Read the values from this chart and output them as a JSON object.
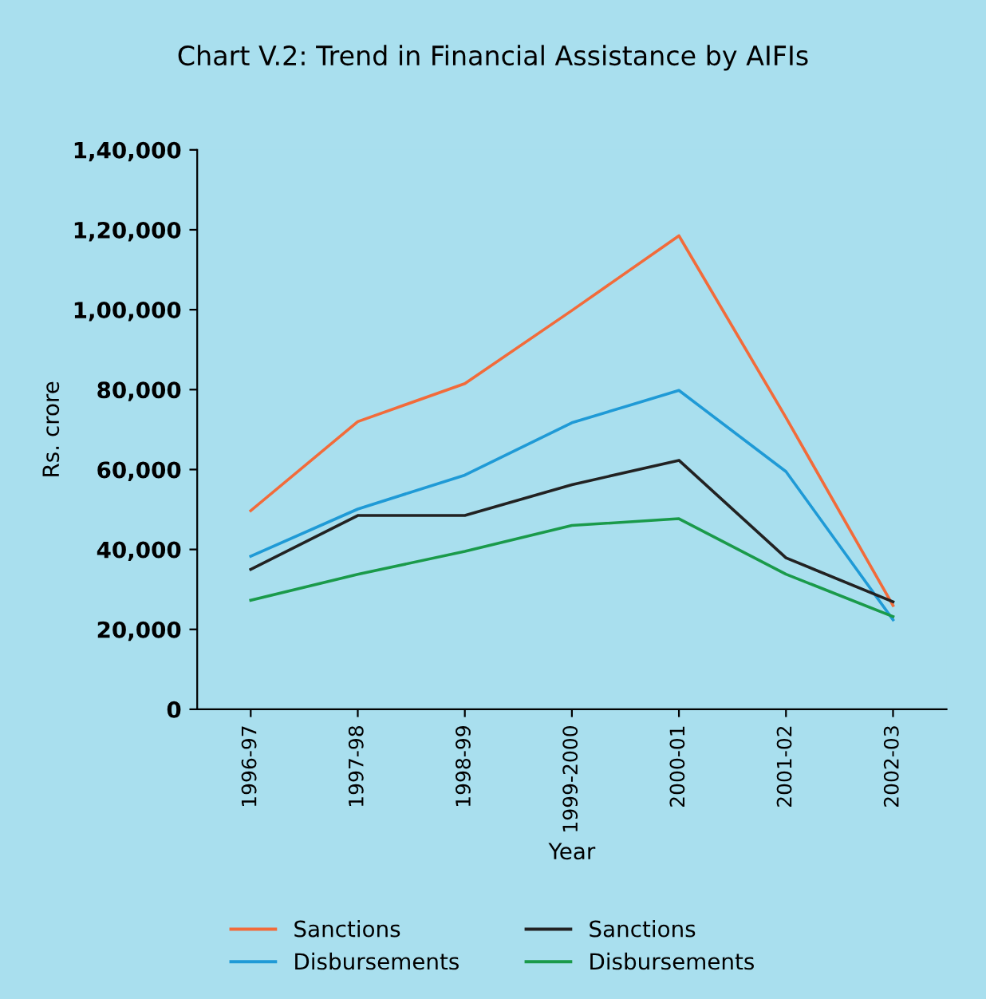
{
  "chart_data": {
    "type": "line",
    "title": "Chart V.2: Trend in Financial Assistance by AIFIs",
    "xlabel": "Year",
    "ylabel": "Rs. crore",
    "categories": [
      "1996-97",
      "1997-98",
      "1998-99",
      "1999-2000",
      "2000-01",
      "2001-02",
      "2002-03"
    ],
    "ylim": [
      0,
      140000
    ],
    "yticks": [
      {
        "value": 0,
        "label": "0"
      },
      {
        "value": 20000,
        "label": "20,000"
      },
      {
        "value": 40000,
        "label": "40,000"
      },
      {
        "value": 60000,
        "label": "60,000"
      },
      {
        "value": 80000,
        "label": "80,000"
      },
      {
        "value": 100000,
        "label": "1,00,000"
      },
      {
        "value": 120000,
        "label": "1,20,000"
      },
      {
        "value": 140000,
        "label": "1,40,000"
      }
    ],
    "series": [
      {
        "name": "Sanctions",
        "color": "#f26b3a",
        "values": [
          49700,
          72000,
          81500,
          99800,
          118500,
          73000,
          26000
        ]
      },
      {
        "name": "Disbursements",
        "color": "#1f9ad6",
        "values": [
          38300,
          50100,
          58600,
          71700,
          79800,
          59500,
          22400
        ]
      },
      {
        "name": "Sanctions",
        "color": "#222222",
        "values": [
          35000,
          48500,
          48500,
          56200,
          62300,
          37900,
          26900
        ]
      },
      {
        "name": "Disbursements",
        "color": "#1a9a4a",
        "values": [
          27300,
          33800,
          39500,
          46000,
          47700,
          33800,
          23200
        ]
      }
    ],
    "legend": "bottom",
    "grid": false,
    "marker": "none",
    "line_style": "solid"
  }
}
